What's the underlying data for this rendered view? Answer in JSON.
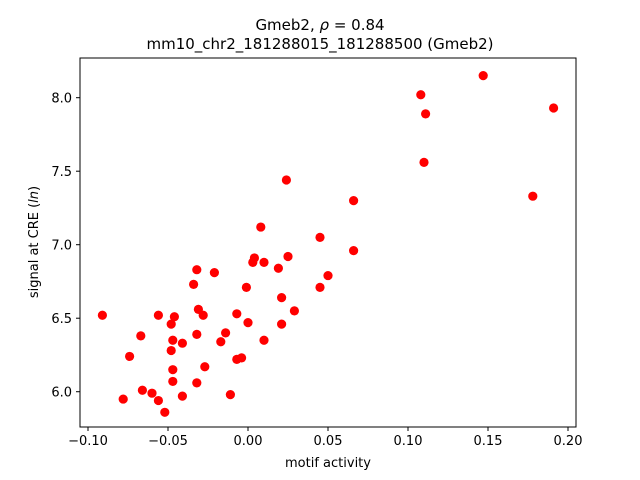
{
  "chart_data": {
    "type": "scatter",
    "title": "Gmeb2, ρ = 0.84",
    "title_parts": {
      "name": "Gmeb2, ",
      "rho": "ρ",
      "eq": " = 0.84"
    },
    "subtitle": "mm10_chr2_181288015_181288500 (Gmeb2)",
    "xlabel": "motif activity",
    "ylabel": "signal at CRE (ln)",
    "ylabel_parts": {
      "pre": "signal at CRE (",
      "var": "ln",
      "post": ")"
    },
    "xlim": [
      -0.105,
      0.205
    ],
    "ylim": [
      5.76,
      8.27
    ],
    "xticks": [
      -0.1,
      -0.05,
      0.0,
      0.05,
      0.1,
      0.15,
      0.2
    ],
    "xtick_labels": [
      "−0.10",
      "−0.05",
      "0.00",
      "0.05",
      "0.10",
      "0.15",
      "0.20"
    ],
    "yticks": [
      6.0,
      6.5,
      7.0,
      7.5,
      8.0
    ],
    "ytick_labels": [
      "6.0",
      "6.5",
      "7.0",
      "7.5",
      "8.0"
    ],
    "grid": false,
    "marker_color": "#ff0000",
    "points": [
      {
        "x": -0.091,
        "y": 6.52
      },
      {
        "x": -0.078,
        "y": 5.95
      },
      {
        "x": -0.074,
        "y": 6.24
      },
      {
        "x": -0.067,
        "y": 6.38
      },
      {
        "x": -0.066,
        "y": 6.01
      },
      {
        "x": -0.06,
        "y": 5.99
      },
      {
        "x": -0.056,
        "y": 6.52
      },
      {
        "x": -0.056,
        "y": 5.94
      },
      {
        "x": -0.052,
        "y": 5.86
      },
      {
        "x": -0.048,
        "y": 6.46
      },
      {
        "x": -0.048,
        "y": 6.28
      },
      {
        "x": -0.047,
        "y": 6.35
      },
      {
        "x": -0.047,
        "y": 6.15
      },
      {
        "x": -0.047,
        "y": 6.07
      },
      {
        "x": -0.046,
        "y": 6.51
      },
      {
        "x": -0.041,
        "y": 6.33
      },
      {
        "x": -0.041,
        "y": 5.97
      },
      {
        "x": -0.034,
        "y": 6.73
      },
      {
        "x": -0.032,
        "y": 6.83
      },
      {
        "x": -0.032,
        "y": 6.39
      },
      {
        "x": -0.032,
        "y": 6.06
      },
      {
        "x": -0.031,
        "y": 6.56
      },
      {
        "x": -0.028,
        "y": 6.52
      },
      {
        "x": -0.027,
        "y": 6.17
      },
      {
        "x": -0.021,
        "y": 6.81
      },
      {
        "x": -0.017,
        "y": 6.34
      },
      {
        "x": -0.014,
        "y": 6.4
      },
      {
        "x": -0.011,
        "y": 5.98
      },
      {
        "x": -0.007,
        "y": 6.53
      },
      {
        "x": -0.007,
        "y": 6.22
      },
      {
        "x": -0.004,
        "y": 6.23
      },
      {
        "x": -0.001,
        "y": 6.71
      },
      {
        "x": 0.0,
        "y": 6.47
      },
      {
        "x": 0.003,
        "y": 6.88
      },
      {
        "x": 0.004,
        "y": 6.91
      },
      {
        "x": 0.008,
        "y": 7.12
      },
      {
        "x": 0.01,
        "y": 6.88
      },
      {
        "x": 0.01,
        "y": 6.35
      },
      {
        "x": 0.019,
        "y": 6.84
      },
      {
        "x": 0.021,
        "y": 6.64
      },
      {
        "x": 0.021,
        "y": 6.46
      },
      {
        "x": 0.024,
        "y": 7.44
      },
      {
        "x": 0.025,
        "y": 6.92
      },
      {
        "x": 0.029,
        "y": 6.55
      },
      {
        "x": 0.045,
        "y": 7.05
      },
      {
        "x": 0.045,
        "y": 6.71
      },
      {
        "x": 0.05,
        "y": 6.79
      },
      {
        "x": 0.066,
        "y": 7.3
      },
      {
        "x": 0.066,
        "y": 6.96
      },
      {
        "x": 0.108,
        "y": 8.02
      },
      {
        "x": 0.11,
        "y": 7.56
      },
      {
        "x": 0.111,
        "y": 7.89
      },
      {
        "x": 0.147,
        "y": 8.15
      },
      {
        "x": 0.178,
        "y": 7.33
      },
      {
        "x": 0.191,
        "y": 7.93
      }
    ]
  }
}
